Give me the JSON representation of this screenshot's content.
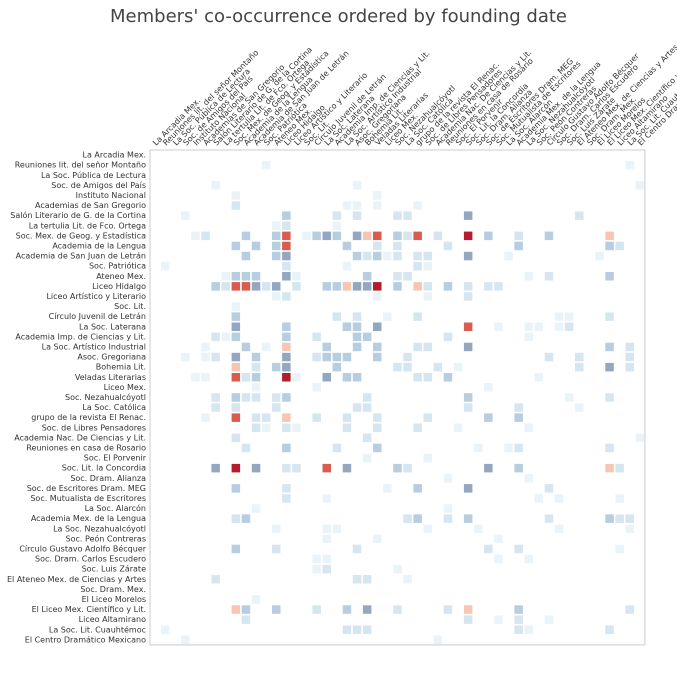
{
  "chart_data": {
    "type": "heatmap",
    "title": "Members' co-occurrence ordered by founding date",
    "labels": [
      "La Arcadia Mex.",
      "Reuniones lit. del señor Montaño",
      "La Soc. Pública de Lectura",
      "Soc. de Amigos del País",
      "Instituto Nacional",
      "Academias de San Gregorio",
      "Salón Literario de G. de la Cortina",
      "La tertulia Lit. de Fco. Ortega",
      "Soc. Mex. de Geog. y Estadística",
      "Academia de la Lengua",
      "Academia de San Juan de Letrán",
      "Soc. Patriótica",
      "Ateneo Mex.",
      "Liceo Hidalgo",
      "Liceo Artístico y Literario",
      "Soc. Lit.",
      "Círculo Juvenil de Letrán",
      "La  Soc. Laterana",
      "Academia Imp. de Ciencias y Lit.",
      "La Soc. Artístico Industrial",
      "Asoc. Gregoriana",
      "Bohemia Lit.",
      "Veladas Literarias",
      "Liceo Mex.",
      "Soc. Nezahualcóyotl",
      "La Soc. Católica",
      "grupo de la revista El Renac.",
      "Soc. de Libres Pensadores",
      "Academia Nac. De Ciencias y Lit.",
      "Reuniones en casa de Rosario",
      "Soc. El Porvenir",
      "Soc. Lit. la Concordia",
      "Soc. Dram. Alianza",
      "Soc. de Escritores Dram. MEG",
      "Soc. Mutualista de Escritores",
      "La Soc. Alarcón",
      "Academia Mex. de la Lengua",
      "La Soc. Nezahualcóyotl",
      "Soc. Peón Contreras",
      "Círculo Gustavo Adolfo Bécquer",
      "Soc. Dram. Carlos Escudero",
      "Soc. Luis Zárate",
      "El Ateneo Mex. de Ciencias y Artes",
      "Soc. Dram. Mex.",
      "El Liceo Morelos",
      "El Liceo Mex. Científico y Lit.",
      "Liceo Altamirano",
      "La Soc. Lit. Cuauhtémoc",
      "El Centro Dramático Mexicano"
    ],
    "scale": "sequential (white to dark red, with blue-grey for mid-low values)",
    "grid": false,
    "legend": "none",
    "colors": [
      "#eaf3f8",
      "#d6e6f0",
      "#b7cde0",
      "#93a8c0",
      "#f6c6b3",
      "#eb9c83",
      "#d85d4e",
      "#b31d2e",
      "#67001f"
    ]
  }
}
